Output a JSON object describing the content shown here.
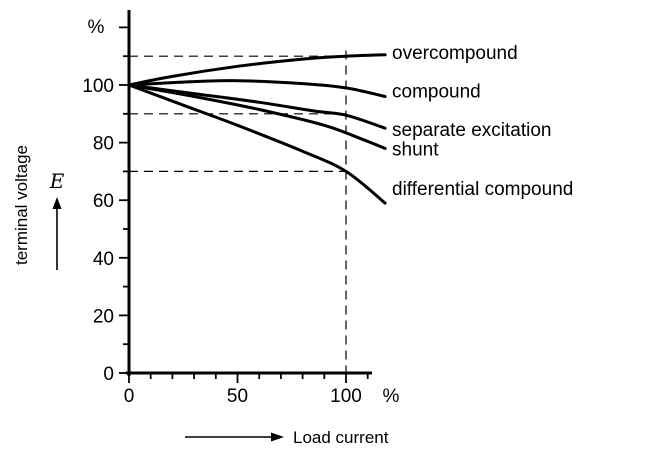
{
  "chart_data": {
    "type": "line",
    "title": "",
    "xlabel": "Load current",
    "ylabel": "terminal voltage",
    "ysymbol": "E",
    "yunit": "%",
    "xunit": "%",
    "xlim": [
      0,
      115
    ],
    "ylim": [
      0,
      125
    ],
    "x_ticks": [
      0,
      50,
      100
    ],
    "y_ticks": [
      0,
      20,
      40,
      60,
      80,
      100
    ],
    "grid": false,
    "series": [
      {
        "name": "overcompound",
        "points": [
          [
            0,
            100
          ],
          [
            20,
            103
          ],
          [
            50,
            106.5
          ],
          [
            80,
            109
          ],
          [
            100,
            110
          ],
          [
            118,
            110.5
          ]
        ]
      },
      {
        "name": "compound",
        "points": [
          [
            0,
            100
          ],
          [
            25,
            101
          ],
          [
            50,
            101.5
          ],
          [
            80,
            100.5
          ],
          [
            100,
            99
          ],
          [
            118,
            96
          ]
        ]
      },
      {
        "name": "separate excitation",
        "points": [
          [
            0,
            100
          ],
          [
            30,
            97
          ],
          [
            60,
            94
          ],
          [
            85,
            91
          ],
          [
            100,
            89.5
          ],
          [
            118,
            85
          ]
        ]
      },
      {
        "name": "shunt",
        "points": [
          [
            0,
            100
          ],
          [
            30,
            96
          ],
          [
            60,
            91.5
          ],
          [
            90,
            86
          ],
          [
            108,
            81
          ],
          [
            118,
            78
          ]
        ]
      },
      {
        "name": "differential compound",
        "points": [
          [
            0,
            100
          ],
          [
            25,
            93
          ],
          [
            50,
            86
          ],
          [
            80,
            77
          ],
          [
            100,
            70
          ],
          [
            118,
            59
          ]
        ]
      }
    ],
    "reference_lines": {
      "horizontal": [
        110,
        90,
        70
      ],
      "vertical": [
        100
      ]
    }
  }
}
